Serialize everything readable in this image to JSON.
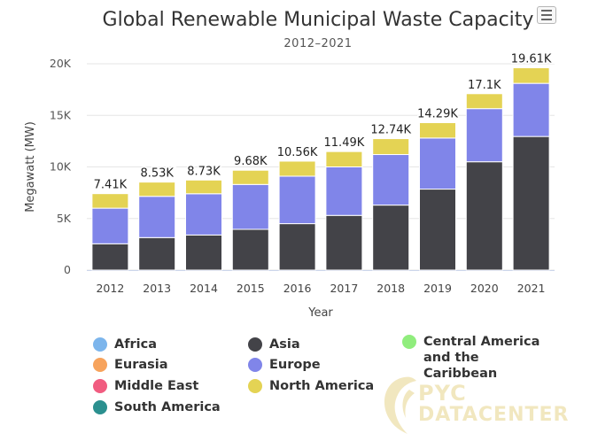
{
  "chart_menu_label": "Chart context menu",
  "chart_data": {
    "type": "bar",
    "stacked": true,
    "title": "Global Renewable Municipal Waste Capacity",
    "subtitle": "2012–2021",
    "xlabel": "Year",
    "ylabel": "Megawatt (MW)",
    "ylim": [
      0,
      20000
    ],
    "yticks": [
      0,
      5000,
      10000,
      15000,
      20000
    ],
    "ytick_labels": [
      "0",
      "5K",
      "10K",
      "15K",
      "20K"
    ],
    "categories": [
      "2012",
      "2013",
      "2014",
      "2015",
      "2016",
      "2017",
      "2018",
      "2019",
      "2020",
      "2021"
    ],
    "series": [
      {
        "name": "Africa",
        "color": "#7cb5ec",
        "values": [
          0,
          0,
          0,
          0,
          0,
          0,
          0,
          0,
          0,
          0
        ]
      },
      {
        "name": "Eurasia",
        "color": "#f7a35c",
        "values": [
          0,
          0,
          0,
          0,
          0,
          0,
          0,
          0,
          0,
          0
        ]
      },
      {
        "name": "Middle East",
        "color": "#f15c80",
        "values": [
          0,
          0,
          0,
          0,
          0,
          0,
          0,
          0,
          0,
          0
        ]
      },
      {
        "name": "South America",
        "color": "#2b908f",
        "values": [
          0,
          0,
          0,
          0,
          0,
          0,
          0,
          0,
          0,
          0
        ]
      },
      {
        "name": "Asia",
        "color": "#434348",
        "values": [
          2550,
          3150,
          3400,
          3950,
          4500,
          5300,
          6300,
          7850,
          10500,
          12950
        ]
      },
      {
        "name": "Europe",
        "color": "#8085e9",
        "values": [
          3450,
          4000,
          4000,
          4350,
          4600,
          4700,
          4900,
          4950,
          5150,
          5150
        ]
      },
      {
        "name": "North America",
        "color": "#e4d354",
        "values": [
          1410,
          1380,
          1330,
          1380,
          1460,
          1490,
          1540,
          1490,
          1450,
          1510
        ]
      },
      {
        "name": "Central America and the Caribbean",
        "color": "#90ed7d",
        "values": [
          0,
          0,
          0,
          0,
          0,
          0,
          0,
          0,
          0,
          0
        ]
      }
    ],
    "totals_labels": [
      "7.41K",
      "8.53K",
      "8.73K",
      "9.68K",
      "10.56K",
      "11.49K",
      "12.74K",
      "14.29K",
      "17.1K",
      "19.61K"
    ],
    "legend_position": "bottom"
  },
  "legend": [
    {
      "label": "Africa",
      "color": "#7cb5ec"
    },
    {
      "label": "Eurasia",
      "color": "#f7a35c"
    },
    {
      "label": "Middle East",
      "color": "#f15c80"
    },
    {
      "label": "South America",
      "color": "#2b908f"
    },
    {
      "label": "Asia",
      "color": "#434348"
    },
    {
      "label": "Europe",
      "color": "#8085e9"
    },
    {
      "label": "North America",
      "color": "#e4d354"
    },
    {
      "label": "Central America and the Caribbean",
      "color": "#90ed7d"
    }
  ],
  "watermark": {
    "line1": "PYC",
    "line2": "DATACENTER"
  }
}
